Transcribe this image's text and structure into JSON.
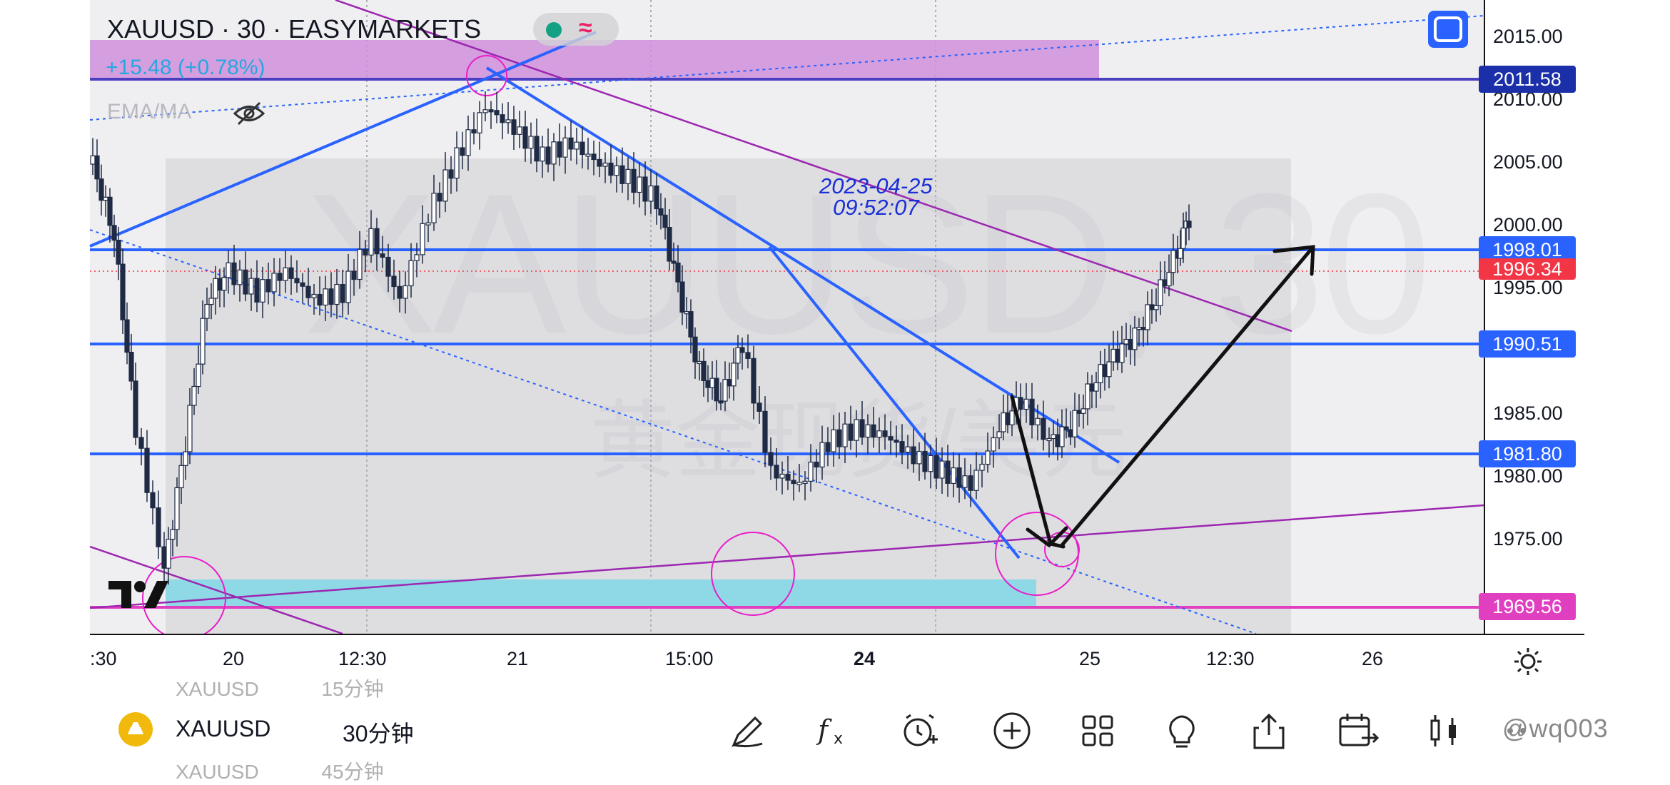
{
  "header": {
    "symbol_title": "XAUUSD · 30 · EASYMARKETS",
    "change": "+15.48 (+0.78%)",
    "indicator": "EMA/MA"
  },
  "watermark": {
    "main": "XAUUSD, 30",
    "sub": "黄金现货/美元"
  },
  "annotation": {
    "timestamp": "2023-04-25\n09:52:07"
  },
  "price_axis": {
    "ticks": [
      "2015.00",
      "2010.00",
      "2005.00",
      "2000.00",
      "1995.00",
      "1985.00",
      "1980.00",
      "1975.00"
    ],
    "badges": [
      {
        "label": "2011.58",
        "color": "#1a2fa8"
      },
      {
        "label": "1998.01",
        "color": "#2962ff"
      },
      {
        "label": "1996.34",
        "color": "#f23645"
      },
      {
        "label": "1990.51",
        "color": "#2962ff"
      },
      {
        "label": "1981.80",
        "color": "#2962ff"
      },
      {
        "label": "1969.56",
        "color": "#e040c0"
      }
    ]
  },
  "time_axis": {
    "ticks": [
      ":30",
      "20",
      "12:30",
      "21",
      "15:00",
      "24",
      "25",
      "12:30",
      "26"
    ]
  },
  "bottom_bar": {
    "ghost_prev": {
      "symbol": "XAUUSD",
      "interval": "15分钟"
    },
    "symbol": "XAUUSD",
    "interval": "30分钟",
    "ghost_next": {
      "symbol": "XAUUSD",
      "interval": "45分钟"
    },
    "tools": [
      "draw-pen-icon",
      "indicators-fx-icon",
      "alert-add-icon",
      "add-icon",
      "layouts-grid-icon",
      "ideas-bulb-icon",
      "share-icon",
      "replay-calendar-icon",
      "chart-type-candles-icon",
      "more-icon"
    ],
    "user_watermark": "@wq003"
  },
  "colors": {
    "accent_blue": "#2962ff",
    "purple_line": "#9c27b0",
    "magenta_line": "#e040c0",
    "zone_purple": "#cf8fdc",
    "zone_cyan": "#8fd9e6",
    "candle": "#1f2a44"
  }
}
